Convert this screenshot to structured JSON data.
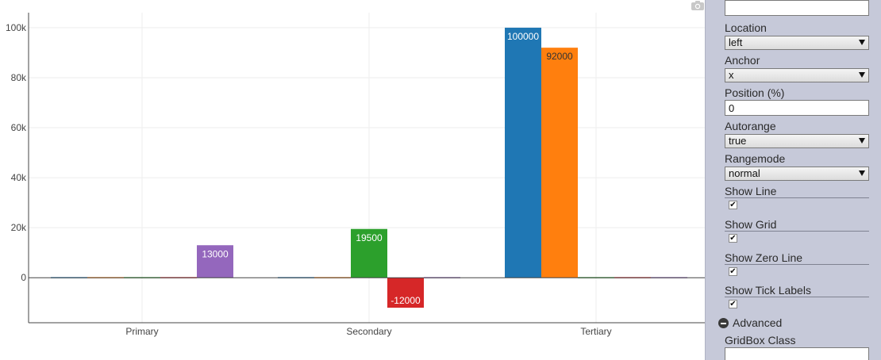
{
  "chart_data": {
    "type": "bar",
    "categories": [
      "Primary",
      "Secondary",
      "Tertiary"
    ],
    "series": [
      {
        "color": "#1f77b4",
        "values": [
          0,
          0,
          100000
        ]
      },
      {
        "color": "#ff7f0e",
        "values": [
          0,
          0,
          92000
        ]
      },
      {
        "color": "#2ca02c",
        "values": [
          0,
          19500,
          0
        ]
      },
      {
        "color": "#d62728",
        "values": [
          0,
          -12000,
          0
        ]
      },
      {
        "color": "#9467bd",
        "values": [
          13000,
          0,
          0
        ]
      }
    ],
    "ylim": [
      -18000,
      106000
    ],
    "yticks": [
      0,
      20000,
      40000,
      60000,
      80000,
      100000
    ],
    "ytick_labels": [
      "0",
      "20k",
      "40k",
      "60k",
      "80k",
      "100k"
    ],
    "data_labels": [
      "13000",
      "19500",
      "-12000",
      "100000",
      "92000"
    ],
    "grid": true,
    "legend": "none"
  },
  "toolbar": {
    "camera_icon": "camera-icon"
  },
  "panel": {
    "top_input_value": "",
    "location_label": "Location",
    "location_value": "left",
    "anchor_label": "Anchor",
    "anchor_value": "x",
    "position_label": "Position (%)",
    "position_value": "0",
    "autorange_label": "Autorange",
    "autorange_value": "true",
    "rangemode_label": "Rangemode",
    "rangemode_value": "normal",
    "show_line_label": "Show Line",
    "show_line_checked": true,
    "show_grid_label": "Show Grid",
    "show_grid_checked": true,
    "show_zero_line_label": "Show Zero Line",
    "show_zero_line_checked": true,
    "show_tick_labels_label": "Show Tick Labels",
    "show_tick_labels_checked": true,
    "advanced_label": "Advanced",
    "advanced_icon": "minus-circle-icon",
    "gridbox_class_label": "GridBox Class",
    "gridbox_class_value": ""
  }
}
